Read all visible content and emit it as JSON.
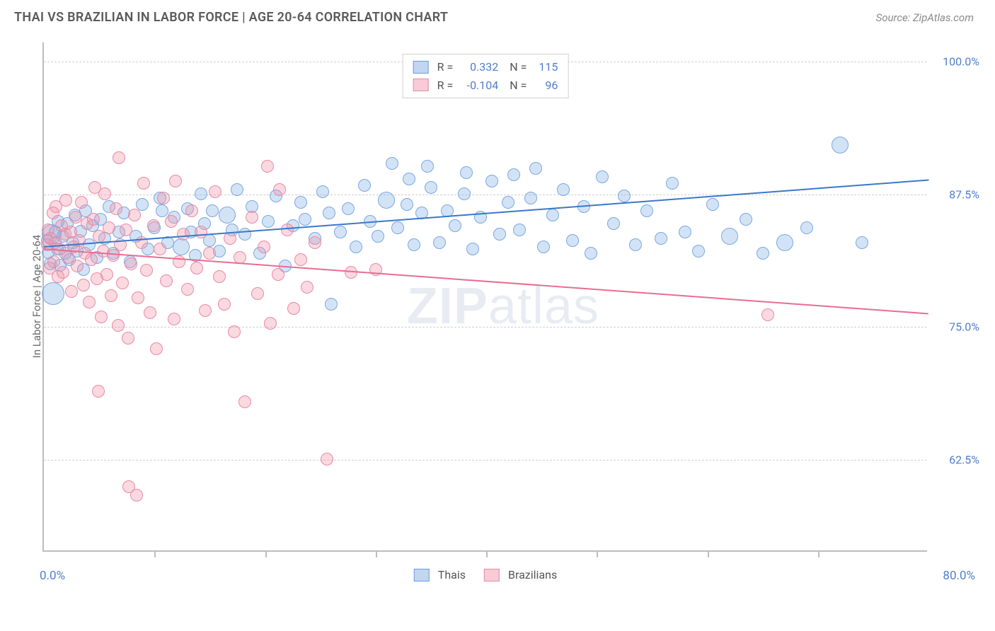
{
  "header": {
    "title": "THAI VS BRAZILIAN IN LABOR FORCE | AGE 20-64 CORRELATION CHART",
    "source": "Source: ZipAtlas.com"
  },
  "chart": {
    "type": "scatter",
    "y_axis_label": "In Labor Force | Age 20-64",
    "watermark": "ZIPatlas",
    "xlim": [
      0,
      80
    ],
    "ylim": [
      54,
      102
    ],
    "x_tick_step": 10,
    "x_origin_label": "0.0%",
    "x_max_label": "80.0%",
    "y_ticks": [
      62.5,
      75.0,
      87.5,
      100.0
    ],
    "y_tick_labels": [
      "62.5%",
      "75.0%",
      "87.5%",
      "100.0%"
    ],
    "grid_color": "#d0d0d0",
    "axis_color": "#bdbdbd",
    "background_color": "#ffffff",
    "series": [
      {
        "name": "Thais",
        "color_fill": "rgba(130,175,230,0.35)",
        "color_stroke": "#7aa8e0",
        "trend_color": "#3a78c9",
        "R": "0.332",
        "N": "115",
        "marker_r": 9,
        "trend": {
          "y_at_x0": 82.5,
          "y_at_xmax": 88.8
        },
        "points": [
          {
            "x": 0.3,
            "y": 83.2
          },
          {
            "x": 0.4,
            "y": 82.1
          },
          {
            "x": 0.6,
            "y": 81.0
          },
          {
            "x": 0.7,
            "y": 83.8,
            "r": 14
          },
          {
            "x": 0.8,
            "y": 78.2,
            "r": 16
          },
          {
            "x": 1.0,
            "y": 84.0
          },
          {
            "x": 1.2,
            "y": 82.4
          },
          {
            "x": 1.3,
            "y": 85.0
          },
          {
            "x": 1.5,
            "y": 80.9
          },
          {
            "x": 1.7,
            "y": 83.6
          },
          {
            "x": 1.9,
            "y": 82.0
          },
          {
            "x": 2.1,
            "y": 84.8
          },
          {
            "x": 2.3,
            "y": 81.4
          },
          {
            "x": 2.6,
            "y": 83.0
          },
          {
            "x": 2.8,
            "y": 85.6
          },
          {
            "x": 3.0,
            "y": 82.2
          },
          {
            "x": 3.3,
            "y": 84.1
          },
          {
            "x": 3.6,
            "y": 80.5
          },
          {
            "x": 3.8,
            "y": 86.0
          },
          {
            "x": 4.1,
            "y": 82.8
          },
          {
            "x": 4.4,
            "y": 84.6
          },
          {
            "x": 4.8,
            "y": 81.6
          },
          {
            "x": 5.1,
            "y": 85.2
          },
          {
            "x": 5.5,
            "y": 83.4
          },
          {
            "x": 5.9,
            "y": 86.4
          },
          {
            "x": 6.3,
            "y": 82.0
          },
          {
            "x": 6.8,
            "y": 84.0
          },
          {
            "x": 7.2,
            "y": 85.8
          },
          {
            "x": 7.8,
            "y": 81.2
          },
          {
            "x": 8.3,
            "y": 83.6
          },
          {
            "x": 8.9,
            "y": 86.6
          },
          {
            "x": 9.4,
            "y": 82.4
          },
          {
            "x": 10.0,
            "y": 84.4
          },
          {
            "x": 10.5,
            "y": 87.2
          },
          {
            "x": 10.7,
            "y": 86.0
          },
          {
            "x": 11.2,
            "y": 83.0
          },
          {
            "x": 11.8,
            "y": 85.4
          },
          {
            "x": 12.4,
            "y": 82.6,
            "r": 12
          },
          {
            "x": 13.0,
            "y": 86.2
          },
          {
            "x": 13.3,
            "y": 84.0
          },
          {
            "x": 13.7,
            "y": 81.8
          },
          {
            "x": 14.2,
            "y": 87.6
          },
          {
            "x": 14.5,
            "y": 84.8
          },
          {
            "x": 15.0,
            "y": 83.2
          },
          {
            "x": 15.2,
            "y": 86.0
          },
          {
            "x": 15.9,
            "y": 82.2
          },
          {
            "x": 16.6,
            "y": 85.6,
            "r": 12
          },
          {
            "x": 17.0,
            "y": 84.2
          },
          {
            "x": 17.5,
            "y": 88.0
          },
          {
            "x": 18.2,
            "y": 83.8
          },
          {
            "x": 18.8,
            "y": 86.4
          },
          {
            "x": 19.5,
            "y": 82.0
          },
          {
            "x": 20.3,
            "y": 85.0
          },
          {
            "x": 21.0,
            "y": 87.4
          },
          {
            "x": 21.8,
            "y": 80.8
          },
          {
            "x": 22.5,
            "y": 84.6
          },
          {
            "x": 23.2,
            "y": 86.8
          },
          {
            "x": 23.6,
            "y": 85.2
          },
          {
            "x": 24.5,
            "y": 83.4
          },
          {
            "x": 25.2,
            "y": 87.8
          },
          {
            "x": 25.8,
            "y": 85.8
          },
          {
            "x": 26.0,
            "y": 77.2
          },
          {
            "x": 26.8,
            "y": 84.0
          },
          {
            "x": 27.5,
            "y": 86.2
          },
          {
            "x": 28.2,
            "y": 82.6
          },
          {
            "x": 29.0,
            "y": 88.4
          },
          {
            "x": 29.5,
            "y": 85.0
          },
          {
            "x": 30.2,
            "y": 83.6
          },
          {
            "x": 31.0,
            "y": 87.0,
            "r": 12
          },
          {
            "x": 31.5,
            "y": 90.5
          },
          {
            "x": 32.0,
            "y": 84.4
          },
          {
            "x": 32.8,
            "y": 86.6
          },
          {
            "x": 33.0,
            "y": 89.0
          },
          {
            "x": 33.5,
            "y": 82.8
          },
          {
            "x": 34.2,
            "y": 85.8
          },
          {
            "x": 34.7,
            "y": 90.2
          },
          {
            "x": 35.0,
            "y": 88.2
          },
          {
            "x": 35.8,
            "y": 83.0
          },
          {
            "x": 36.5,
            "y": 86.0
          },
          {
            "x": 37.2,
            "y": 84.6
          },
          {
            "x": 38.0,
            "y": 87.6
          },
          {
            "x": 38.2,
            "y": 89.6
          },
          {
            "x": 38.8,
            "y": 82.4
          },
          {
            "x": 39.5,
            "y": 85.4
          },
          {
            "x": 40.5,
            "y": 88.8
          },
          {
            "x": 41.2,
            "y": 83.8
          },
          {
            "x": 42.0,
            "y": 86.8
          },
          {
            "x": 42.5,
            "y": 89.4
          },
          {
            "x": 43.0,
            "y": 84.2
          },
          {
            "x": 44.0,
            "y": 87.2
          },
          {
            "x": 44.5,
            "y": 90.0
          },
          {
            "x": 45.2,
            "y": 82.6
          },
          {
            "x": 46.0,
            "y": 85.6
          },
          {
            "x": 47.0,
            "y": 88.0
          },
          {
            "x": 47.8,
            "y": 83.2
          },
          {
            "x": 48.8,
            "y": 86.4
          },
          {
            "x": 49.5,
            "y": 82.0
          },
          {
            "x": 50.5,
            "y": 89.2
          },
          {
            "x": 51.5,
            "y": 84.8
          },
          {
            "x": 52.5,
            "y": 87.4
          },
          {
            "x": 53.5,
            "y": 82.8
          },
          {
            "x": 54.5,
            "y": 86.0
          },
          {
            "x": 55.8,
            "y": 83.4
          },
          {
            "x": 56.8,
            "y": 88.6
          },
          {
            "x": 58.0,
            "y": 84.0
          },
          {
            "x": 59.2,
            "y": 82.2
          },
          {
            "x": 60.5,
            "y": 86.6
          },
          {
            "x": 62.0,
            "y": 83.6,
            "r": 12
          },
          {
            "x": 63.5,
            "y": 85.2
          },
          {
            "x": 65.0,
            "y": 82.0
          },
          {
            "x": 67.0,
            "y": 83.0,
            "r": 12
          },
          {
            "x": 69.0,
            "y": 84.4
          },
          {
            "x": 72.0,
            "y": 92.2,
            "r": 12
          },
          {
            "x": 74.0,
            "y": 83.0
          }
        ]
      },
      {
        "name": "Brazilians",
        "color_fill": "rgba(240,145,170,0.35)",
        "color_stroke": "#e88aa4",
        "trend_color": "#e76d92",
        "R": "-0.104",
        "N": "96",
        "marker_r": 9,
        "trend": {
          "y_at_x0": 82.3,
          "y_at_xmax": 76.2
        },
        "points": [
          {
            "x": 0.3,
            "y": 82.8
          },
          {
            "x": 0.4,
            "y": 84.2
          },
          {
            "x": 0.5,
            "y": 80.6
          },
          {
            "x": 0.6,
            "y": 83.4
          },
          {
            "x": 0.8,
            "y": 85.8
          },
          {
            "x": 0.9,
            "y": 81.2
          },
          {
            "x": 1.0,
            "y": 83.0
          },
          {
            "x": 1.1,
            "y": 86.4
          },
          {
            "x": 1.3,
            "y": 79.8
          },
          {
            "x": 1.4,
            "y": 82.4
          },
          {
            "x": 1.6,
            "y": 84.6
          },
          {
            "x": 1.7,
            "y": 80.2
          },
          {
            "x": 1.9,
            "y": 83.8
          },
          {
            "x": 2.0,
            "y": 87.0
          },
          {
            "x": 2.2,
            "y": 81.6
          },
          {
            "x": 2.4,
            "y": 84.0
          },
          {
            "x": 2.5,
            "y": 78.4
          },
          {
            "x": 2.7,
            "y": 82.6
          },
          {
            "x": 2.9,
            "y": 85.4
          },
          {
            "x": 3.0,
            "y": 80.8
          },
          {
            "x": 3.2,
            "y": 83.2
          },
          {
            "x": 3.4,
            "y": 86.8
          },
          {
            "x": 3.6,
            "y": 79.0
          },
          {
            "x": 3.7,
            "y": 82.0
          },
          {
            "x": 3.9,
            "y": 84.8
          },
          {
            "x": 4.1,
            "y": 77.4
          },
          {
            "x": 4.3,
            "y": 81.4
          },
          {
            "x": 4.5,
            "y": 85.2
          },
          {
            "x": 4.6,
            "y": 88.2
          },
          {
            "x": 4.8,
            "y": 79.6
          },
          {
            "x": 4.9,
            "y": 69.0
          },
          {
            "x": 5.0,
            "y": 83.6
          },
          {
            "x": 5.2,
            "y": 76.0
          },
          {
            "x": 5.4,
            "y": 82.2
          },
          {
            "x": 5.5,
            "y": 87.6
          },
          {
            "x": 5.7,
            "y": 80.0
          },
          {
            "x": 5.9,
            "y": 84.4
          },
          {
            "x": 6.1,
            "y": 78.0
          },
          {
            "x": 6.3,
            "y": 81.8
          },
          {
            "x": 6.5,
            "y": 86.2
          },
          {
            "x": 6.7,
            "y": 75.2
          },
          {
            "x": 6.8,
            "y": 91.0
          },
          {
            "x": 6.9,
            "y": 82.8
          },
          {
            "x": 7.1,
            "y": 79.2
          },
          {
            "x": 7.4,
            "y": 84.2
          },
          {
            "x": 7.6,
            "y": 74.0
          },
          {
            "x": 7.7,
            "y": 60.0
          },
          {
            "x": 7.9,
            "y": 81.0
          },
          {
            "x": 8.2,
            "y": 85.6
          },
          {
            "x": 8.4,
            "y": 59.2
          },
          {
            "x": 8.5,
            "y": 77.8
          },
          {
            "x": 8.8,
            "y": 83.0
          },
          {
            "x": 9.0,
            "y": 88.6
          },
          {
            "x": 9.3,
            "y": 80.4
          },
          {
            "x": 9.6,
            "y": 76.4
          },
          {
            "x": 9.9,
            "y": 84.6
          },
          {
            "x": 10.2,
            "y": 73.0
          },
          {
            "x": 10.5,
            "y": 82.4
          },
          {
            "x": 10.8,
            "y": 87.2
          },
          {
            "x": 11.1,
            "y": 79.4
          },
          {
            "x": 11.5,
            "y": 85.0
          },
          {
            "x": 11.8,
            "y": 75.8
          },
          {
            "x": 11.9,
            "y": 88.8
          },
          {
            "x": 12.2,
            "y": 81.2
          },
          {
            "x": 12.6,
            "y": 83.8
          },
          {
            "x": 13.0,
            "y": 78.6
          },
          {
            "x": 13.4,
            "y": 86.0
          },
          {
            "x": 13.8,
            "y": 80.6
          },
          {
            "x": 14.2,
            "y": 84.0
          },
          {
            "x": 14.6,
            "y": 76.6
          },
          {
            "x": 15.0,
            "y": 82.0
          },
          {
            "x": 15.5,
            "y": 87.8
          },
          {
            "x": 15.9,
            "y": 79.8
          },
          {
            "x": 16.3,
            "y": 77.2
          },
          {
            "x": 16.8,
            "y": 83.4
          },
          {
            "x": 17.2,
            "y": 74.6
          },
          {
            "x": 17.7,
            "y": 81.6
          },
          {
            "x": 18.2,
            "y": 68.0
          },
          {
            "x": 18.8,
            "y": 85.4
          },
          {
            "x": 19.3,
            "y": 78.2
          },
          {
            "x": 19.9,
            "y": 82.6
          },
          {
            "x": 20.2,
            "y": 90.2
          },
          {
            "x": 20.5,
            "y": 75.4
          },
          {
            "x": 21.2,
            "y": 80.0
          },
          {
            "x": 21.3,
            "y": 88.0
          },
          {
            "x": 22.0,
            "y": 84.2
          },
          {
            "x": 22.6,
            "y": 76.8
          },
          {
            "x": 23.2,
            "y": 81.4
          },
          {
            "x": 23.8,
            "y": 78.8
          },
          {
            "x": 24.5,
            "y": 83.0
          },
          {
            "x": 25.6,
            "y": 62.6
          },
          {
            "x": 27.8,
            "y": 80.2
          },
          {
            "x": 30.0,
            "y": 80.5
          },
          {
            "x": 65.5,
            "y": 76.2
          }
        ]
      }
    ],
    "bottom_legend": [
      {
        "label": "Thais",
        "swatch": "blue"
      },
      {
        "label": "Brazilians",
        "swatch": "pink"
      }
    ]
  }
}
